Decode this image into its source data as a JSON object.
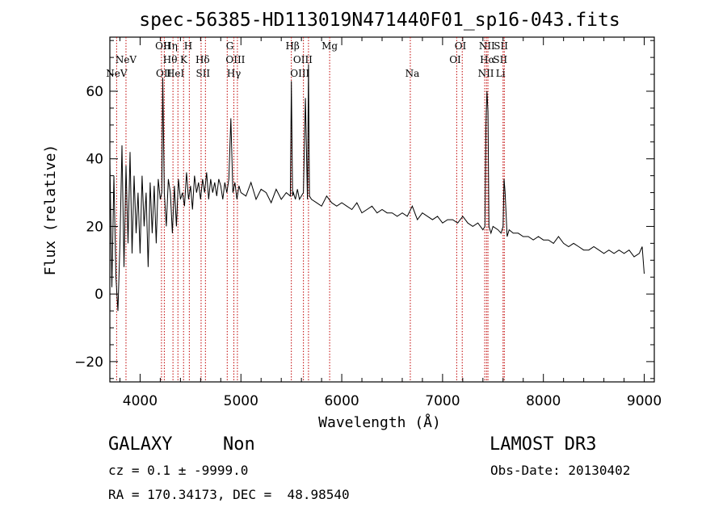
{
  "chart_data": {
    "type": "line",
    "title": "spec-56385-HD113019N471440F01_sp16-043.fits",
    "xlabel": "Wavelength (Å)",
    "ylabel": "Flux (relative)",
    "xlim": [
      3700,
      9100
    ],
    "ylim": [
      -26,
      76
    ],
    "xticks": [
      4000,
      5000,
      6000,
      7000,
      8000,
      9000
    ],
    "yticks": [
      -20,
      0,
      20,
      40,
      60
    ],
    "tick_labels_x": [
      "4000",
      "5000",
      "6000",
      "7000",
      "8000",
      "9000"
    ],
    "tick_labels_y": [
      "−20",
      "0",
      "20",
      "40",
      "60"
    ],
    "line_color": "#000000",
    "marker_color": "#c00000",
    "spectrum": {
      "x": [
        3700,
        3720,
        3740,
        3760,
        3780,
        3800,
        3820,
        3840,
        3860,
        3880,
        3900,
        3920,
        3940,
        3960,
        3980,
        4000,
        4020,
        4040,
        4060,
        4080,
        4100,
        4120,
        4140,
        4160,
        4180,
        4200,
        4215,
        4225,
        4240,
        4260,
        4280,
        4300,
        4320,
        4340,
        4360,
        4380,
        4400,
        4420,
        4440,
        4460,
        4480,
        4500,
        4520,
        4540,
        4560,
        4580,
        4600,
        4620,
        4640,
        4660,
        4680,
        4700,
        4720,
        4740,
        4760,
        4780,
        4800,
        4820,
        4840,
        4860,
        4880,
        4900,
        4920,
        4940,
        4960,
        4980,
        5000,
        5050,
        5100,
        5150,
        5200,
        5250,
        5300,
        5350,
        5400,
        5450,
        5490,
        5500,
        5512,
        5520,
        5540,
        5560,
        5580,
        5600,
        5620,
        5640,
        5660,
        5670,
        5680,
        5700,
        5750,
        5800,
        5850,
        5900,
        5950,
        6000,
        6050,
        6100,
        6150,
        6200,
        6250,
        6300,
        6350,
        6400,
        6450,
        6500,
        6550,
        6600,
        6650,
        6700,
        6750,
        6800,
        6850,
        6900,
        6950,
        7000,
        7050,
        7100,
        7150,
        7200,
        7250,
        7300,
        7350,
        7400,
        7420,
        7430,
        7440,
        7450,
        7460,
        7480,
        7500,
        7550,
        7580,
        7600,
        7610,
        7620,
        7640,
        7660,
        7700,
        7750,
        7800,
        7850,
        7900,
        7950,
        8000,
        8050,
        8100,
        8150,
        8200,
        8250,
        8300,
        8350,
        8400,
        8450,
        8500,
        8550,
        8600,
        8650,
        8700,
        8750,
        8800,
        8850,
        8900,
        8950,
        8980,
        9000
      ],
      "y": [
        40,
        2,
        35,
        5,
        -5,
        15,
        44,
        8,
        38,
        15,
        42,
        12,
        35,
        18,
        30,
        12,
        35,
        20,
        30,
        8,
        33,
        18,
        32,
        15,
        34,
        28,
        30,
        64,
        30,
        20,
        34,
        30,
        18,
        32,
        20,
        34,
        28,
        30,
        26,
        36,
        28,
        32,
        25,
        35,
        30,
        33,
        28,
        34,
        30,
        36,
        28,
        34,
        30,
        33,
        29,
        34,
        32,
        28,
        33,
        30,
        34,
        52,
        30,
        33,
        28,
        32,
        30,
        29,
        33,
        28,
        31,
        30,
        27,
        31,
        28,
        30,
        29,
        63,
        29,
        30,
        28,
        31,
        28,
        29,
        30,
        58,
        28,
        68,
        29,
        28,
        27,
        26,
        29,
        27,
        26,
        27,
        26,
        25,
        27,
        24,
        25,
        26,
        24,
        25,
        24,
        24,
        23,
        24,
        23,
        26,
        22,
        24,
        23,
        22,
        23,
        21,
        22,
        22,
        21,
        23,
        21,
        20,
        21,
        19,
        20,
        50,
        60,
        54,
        20,
        18,
        20,
        19,
        18,
        20,
        34,
        30,
        17,
        19,
        18,
        18,
        17,
        17,
        16,
        17,
        16,
        16,
        15,
        17,
        15,
        14,
        15,
        14,
        13,
        13,
        14,
        13,
        12,
        13,
        12,
        13,
        12,
        13,
        11,
        12,
        14,
        6
      ]
    },
    "lines": [
      {
        "name": "NeV",
        "x": 3767,
        "row": 3
      },
      {
        "name": "NeV",
        "x": 3860,
        "row": 2
      },
      {
        "name": "OII",
        "x": 4227,
        "row": 1
      },
      {
        "name": "OII",
        "x": 4234,
        "row": 3
      },
      {
        "name": "Hη",
        "x": 4301,
        "row": 1
      },
      {
        "name": "Hθ",
        "x": 4298,
        "row": 2
      },
      {
        "name": "HeI",
        "x": 4350,
        "row": 3
      },
      {
        "name": "H",
        "x": 4477,
        "row": 1
      },
      {
        "name": "K",
        "x": 4433,
        "row": 2
      },
      {
        "name": "Hδ",
        "x": 4620,
        "row": 2
      },
      {
        "name": "SII",
        "x": 4624,
        "row": 3
      },
      {
        "name": "G",
        "x": 4890,
        "row": 1
      },
      {
        "name": "OIII",
        "x": 4945,
        "row": 2
      },
      {
        "name": "Hγ",
        "x": 4930,
        "row": 3
      },
      {
        "name": "Hβ",
        "x": 5512,
        "row": 1
      },
      {
        "name": "OIII",
        "x": 5614,
        "row": 2
      },
      {
        "name": "OIII",
        "x": 5585,
        "row": 3
      },
      {
        "name": "Mg",
        "x": 5880,
        "row": 1
      },
      {
        "name": "Na",
        "x": 6700,
        "row": 3
      },
      {
        "name": "OI",
        "x": 7177,
        "row": 1
      },
      {
        "name": "OI",
        "x": 7125,
        "row": 2
      },
      {
        "name": "NII",
        "x": 7440,
        "row": 1
      },
      {
        "name": "SII",
        "x": 7579,
        "row": 1
      },
      {
        "name": "Hα",
        "x": 7445,
        "row": 2
      },
      {
        "name": "SII",
        "x": 7572,
        "row": 2
      },
      {
        "name": "NII",
        "x": 7430,
        "row": 3
      },
      {
        "name": "Li",
        "x": 7575,
        "row": 3
      }
    ],
    "marker_positions": [
      3767,
      3860,
      4212,
      4240,
      4326,
      4375,
      4431,
      4488,
      4605,
      4648,
      4864,
      4930,
      4965,
      5500,
      5620,
      5670,
      5880,
      6680,
      7140,
      7195,
      7418,
      7436,
      7450,
      7600,
      7612
    ]
  },
  "footer": {
    "class_label": "GALAXY",
    "subclass_label": "Non",
    "survey_label": "LAMOST DR3",
    "cz_text": "cz = 0.1 ± -9999.0",
    "obs_date_text": "Obs-Date: 20130402",
    "coords_text": "RA = 170.34173, DEC =  48.98540"
  }
}
